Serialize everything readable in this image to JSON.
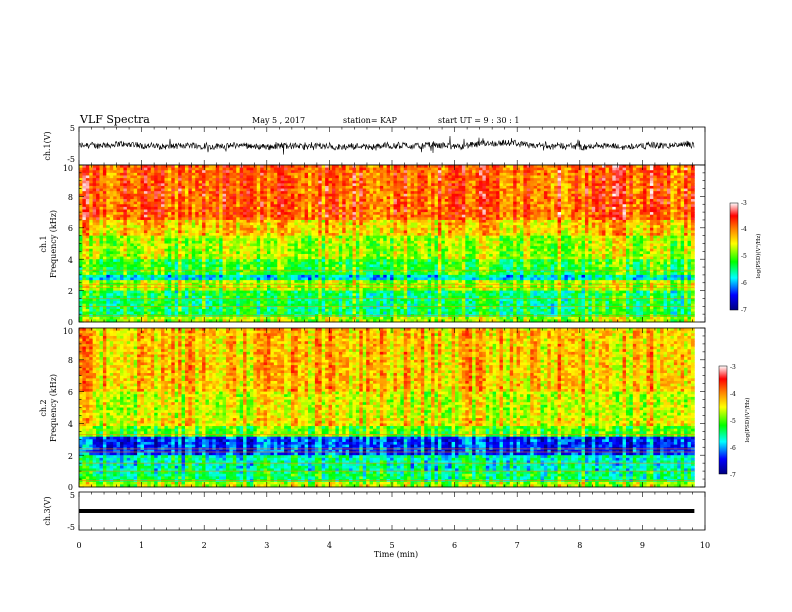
{
  "header": {
    "title": "VLF Spectra",
    "date": "May 5 , 2017",
    "station": "station= KAP",
    "start_time": "start UT = 9 : 30 : 1"
  },
  "chart_data": [
    {
      "type": "line",
      "panel": "ch1-waveform",
      "ylabel": "ch.1(V)",
      "ylim": [
        -5,
        5
      ],
      "y_ticks": [
        "5",
        "-5"
      ],
      "xlim": [
        0,
        10
      ],
      "series_color": "#000000"
    },
    {
      "type": "heatmap",
      "panel": "ch1-spectrogram",
      "ylabel_line1": "ch.1",
      "ylabel_line2": "Frequency (kHz)",
      "ylim": [
        0,
        10
      ],
      "y_ticks": [
        "0",
        "2",
        "4",
        "6",
        "8",
        "10"
      ],
      "xlim": [
        0,
        10
      ],
      "colorbar": {
        "label": "log(PSD)(V²/Hz)",
        "range": [
          -7,
          -3
        ],
        "ticks": [
          "-3",
          "-4",
          "-5",
          "-6",
          "-7"
        ],
        "colormap": [
          "#00007f",
          "#0000ff",
          "#00ffff",
          "#00ff00",
          "#ffff00",
          "#ff7f00",
          "#ff0000",
          "#ffffff"
        ]
      }
    },
    {
      "type": "heatmap",
      "panel": "ch2-spectrogram",
      "ylabel_line1": "ch.2",
      "ylabel_line2": "Frequency (kHz)",
      "ylim": [
        0,
        10
      ],
      "y_ticks": [
        "0",
        "2",
        "4",
        "6",
        "8",
        "10"
      ],
      "xlim": [
        0,
        10
      ],
      "colorbar": {
        "label": "log(PSD)(V²/Hz)",
        "range": [
          -7,
          -3
        ],
        "ticks": [
          "-3",
          "-4",
          "-5",
          "-6",
          "-7"
        ],
        "colormap": [
          "#00007f",
          "#0000ff",
          "#00ffff",
          "#00ff00",
          "#ffff00",
          "#ff7f00",
          "#ff0000",
          "#ffffff"
        ]
      }
    },
    {
      "type": "line",
      "panel": "ch3-waveform",
      "ylabel": "ch.3(V)",
      "ylim": [
        -5,
        5
      ],
      "y_ticks": [
        "5",
        "-5"
      ],
      "xlim": [
        0,
        10
      ],
      "constant_value": 0,
      "series_color": "#000000"
    }
  ],
  "x_axis": {
    "label": "Time (min)",
    "ticks": [
      "0",
      "1",
      "2",
      "3",
      "4",
      "5",
      "6",
      "7",
      "8",
      "9",
      "10"
    ],
    "range": [
      0,
      10
    ],
    "data_end": 9.83
  }
}
